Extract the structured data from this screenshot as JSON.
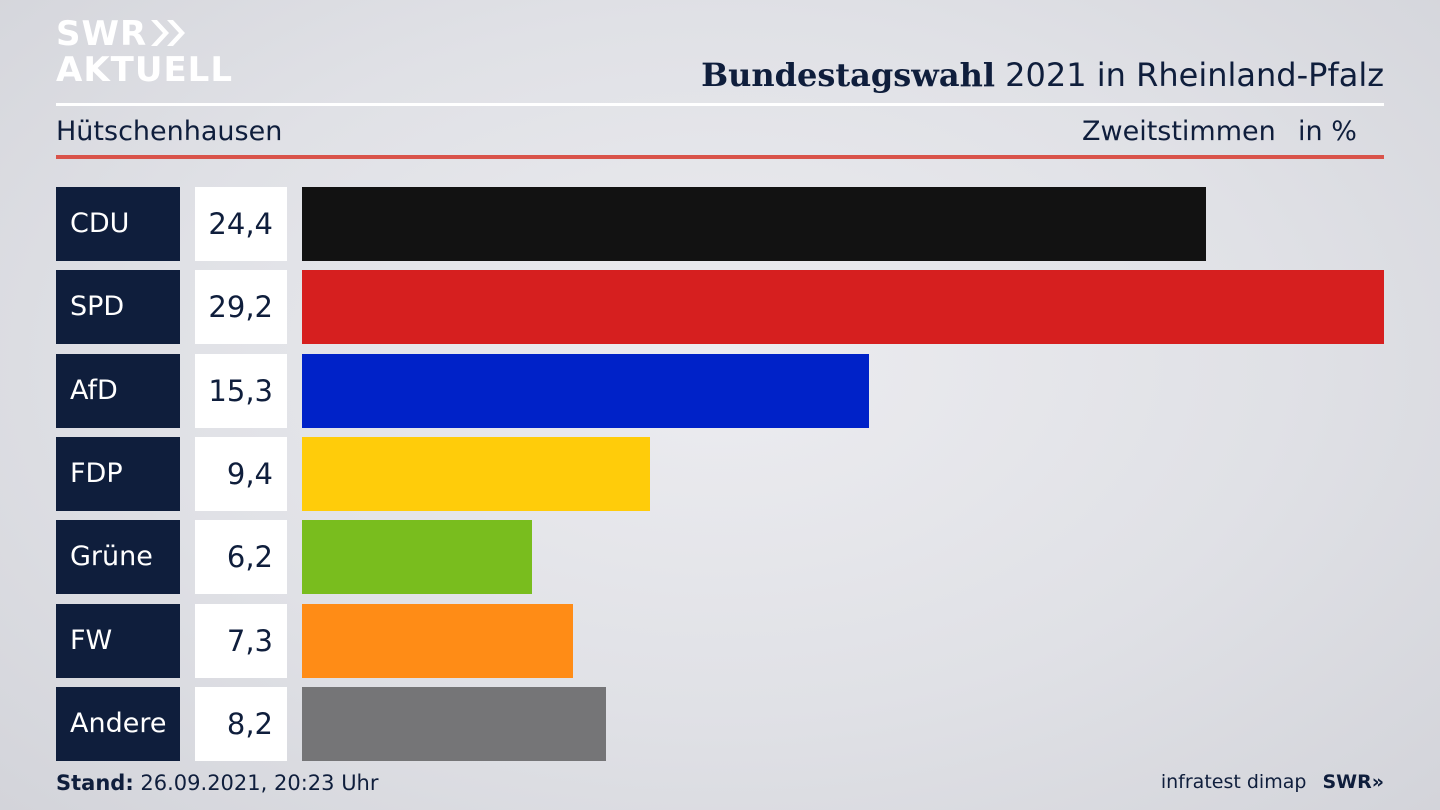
{
  "brand": {
    "logo_line1": "SWR",
    "logo_line2": "AKTUELL",
    "footer_source": "infratest dimap",
    "footer_logo": "SWR»"
  },
  "header": {
    "title_bold": "Bundestagswahl",
    "title_rest": "2021 in Rheinland-Pfalz",
    "region": "Hütschenhausen",
    "metric": "Zweitstimmen",
    "unit": "in %"
  },
  "footer": {
    "stand_label": "Stand:",
    "stand_value": "26.09.2021, 20:23 Uhr"
  },
  "chart_data": {
    "type": "bar",
    "orientation": "horizontal",
    "categories": [
      "CDU",
      "SPD",
      "AfD",
      "FDP",
      "Grüne",
      "FW",
      "Andere"
    ],
    "values": [
      24.4,
      29.2,
      15.3,
      9.4,
      6.2,
      7.3,
      8.2
    ],
    "value_labels": [
      "24,4",
      "29,2",
      "15,3",
      "9,4",
      "6,2",
      "7,3",
      "8,2"
    ],
    "colors": [
      "#121212",
      "#d61f1f",
      "#0022c8",
      "#ffcc0a",
      "#79bd1e",
      "#ff8c16",
      "#757577"
    ],
    "xlim": [
      0,
      29.2
    ]
  }
}
